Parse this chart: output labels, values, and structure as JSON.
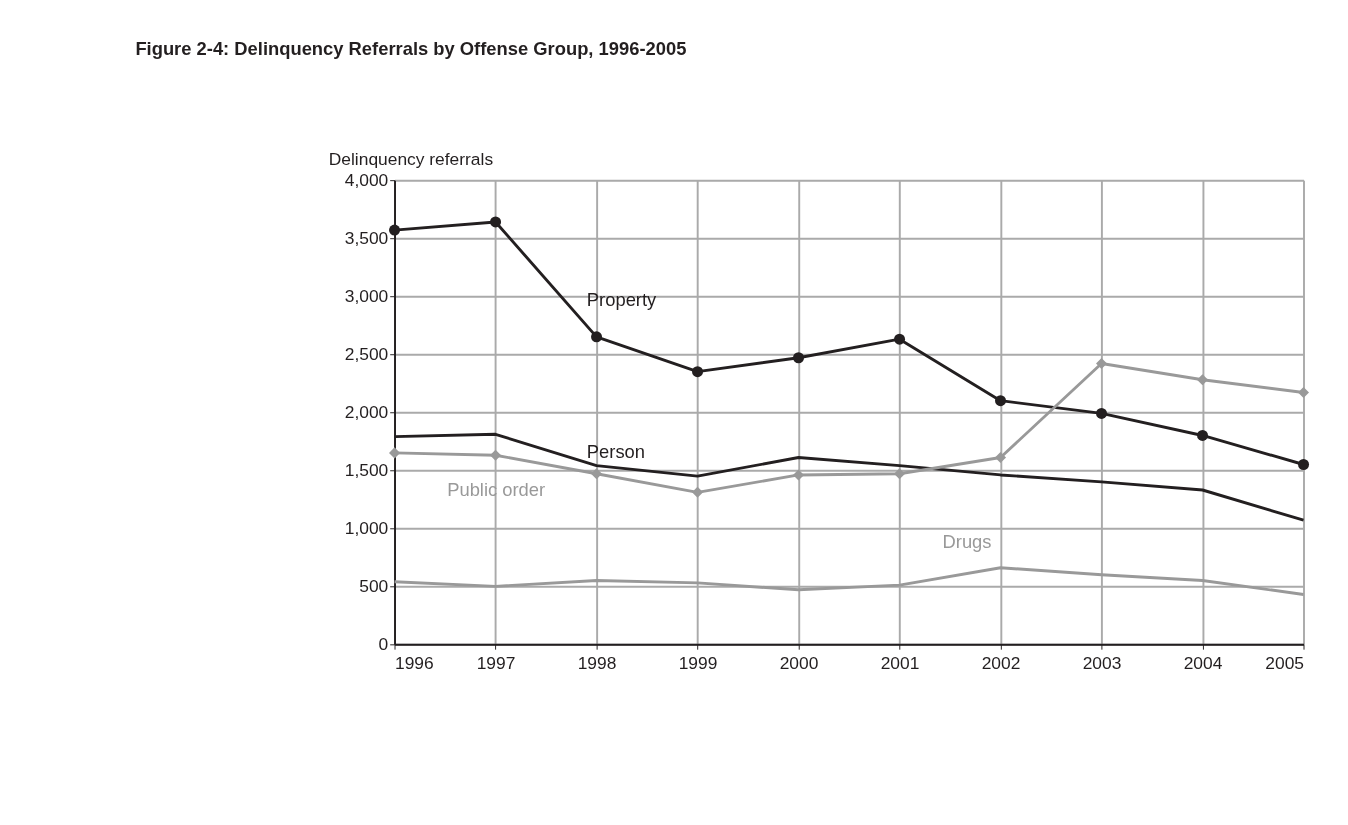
{
  "chart_data": {
    "type": "line",
    "title": "Figure 2-4:  Delinquency Referrals by Offense Group, 1996-2005",
    "ylabel": "Delinquency referrals",
    "x": [
      1996,
      1997,
      1998,
      1999,
      2000,
      2001,
      2002,
      2003,
      2004,
      2005
    ],
    "xlim": [
      1996,
      2005
    ],
    "xticks": [
      1996,
      1997,
      1998,
      1999,
      2000,
      2001,
      2002,
      2003,
      2004,
      2005
    ],
    "ylim": [
      0,
      4000
    ],
    "yticks": [
      {
        "value": 0,
        "label": "0"
      },
      {
        "value": 500,
        "label": "500"
      },
      {
        "value": 1000,
        "label": "1,000"
      },
      {
        "value": 1500,
        "label": "1,500"
      },
      {
        "value": 2000,
        "label": "2,000"
      },
      {
        "value": 2500,
        "label": "2,500"
      },
      {
        "value": 3000,
        "label": "3,000"
      },
      {
        "value": 3500,
        "label": "3,500"
      },
      {
        "value": 4000,
        "label": "4,000"
      }
    ],
    "grid": true,
    "line_style": "solid",
    "series": [
      {
        "name": "Property",
        "color": "#231f20",
        "marker": "circle",
        "values": [
          3570,
          3640,
          2650,
          2350,
          2470,
          2630,
          2100,
          1990,
          1800,
          1550
        ]
      },
      {
        "name": "Person",
        "color": "#231f20",
        "marker": "none",
        "values": [
          1790,
          1810,
          1540,
          1450,
          1610,
          1540,
          1460,
          1400,
          1330,
          1070
        ]
      },
      {
        "name": "Public order",
        "color": "#999999",
        "marker": "diamond",
        "values": [
          1650,
          1630,
          1470,
          1310,
          1460,
          1470,
          1610,
          2420,
          2280,
          2170
        ]
      },
      {
        "name": "Drugs",
        "color": "#999999",
        "marker": "none",
        "values": [
          540,
          500,
          550,
          530,
          470,
          510,
          660,
          600,
          550,
          430
        ]
      }
    ]
  }
}
